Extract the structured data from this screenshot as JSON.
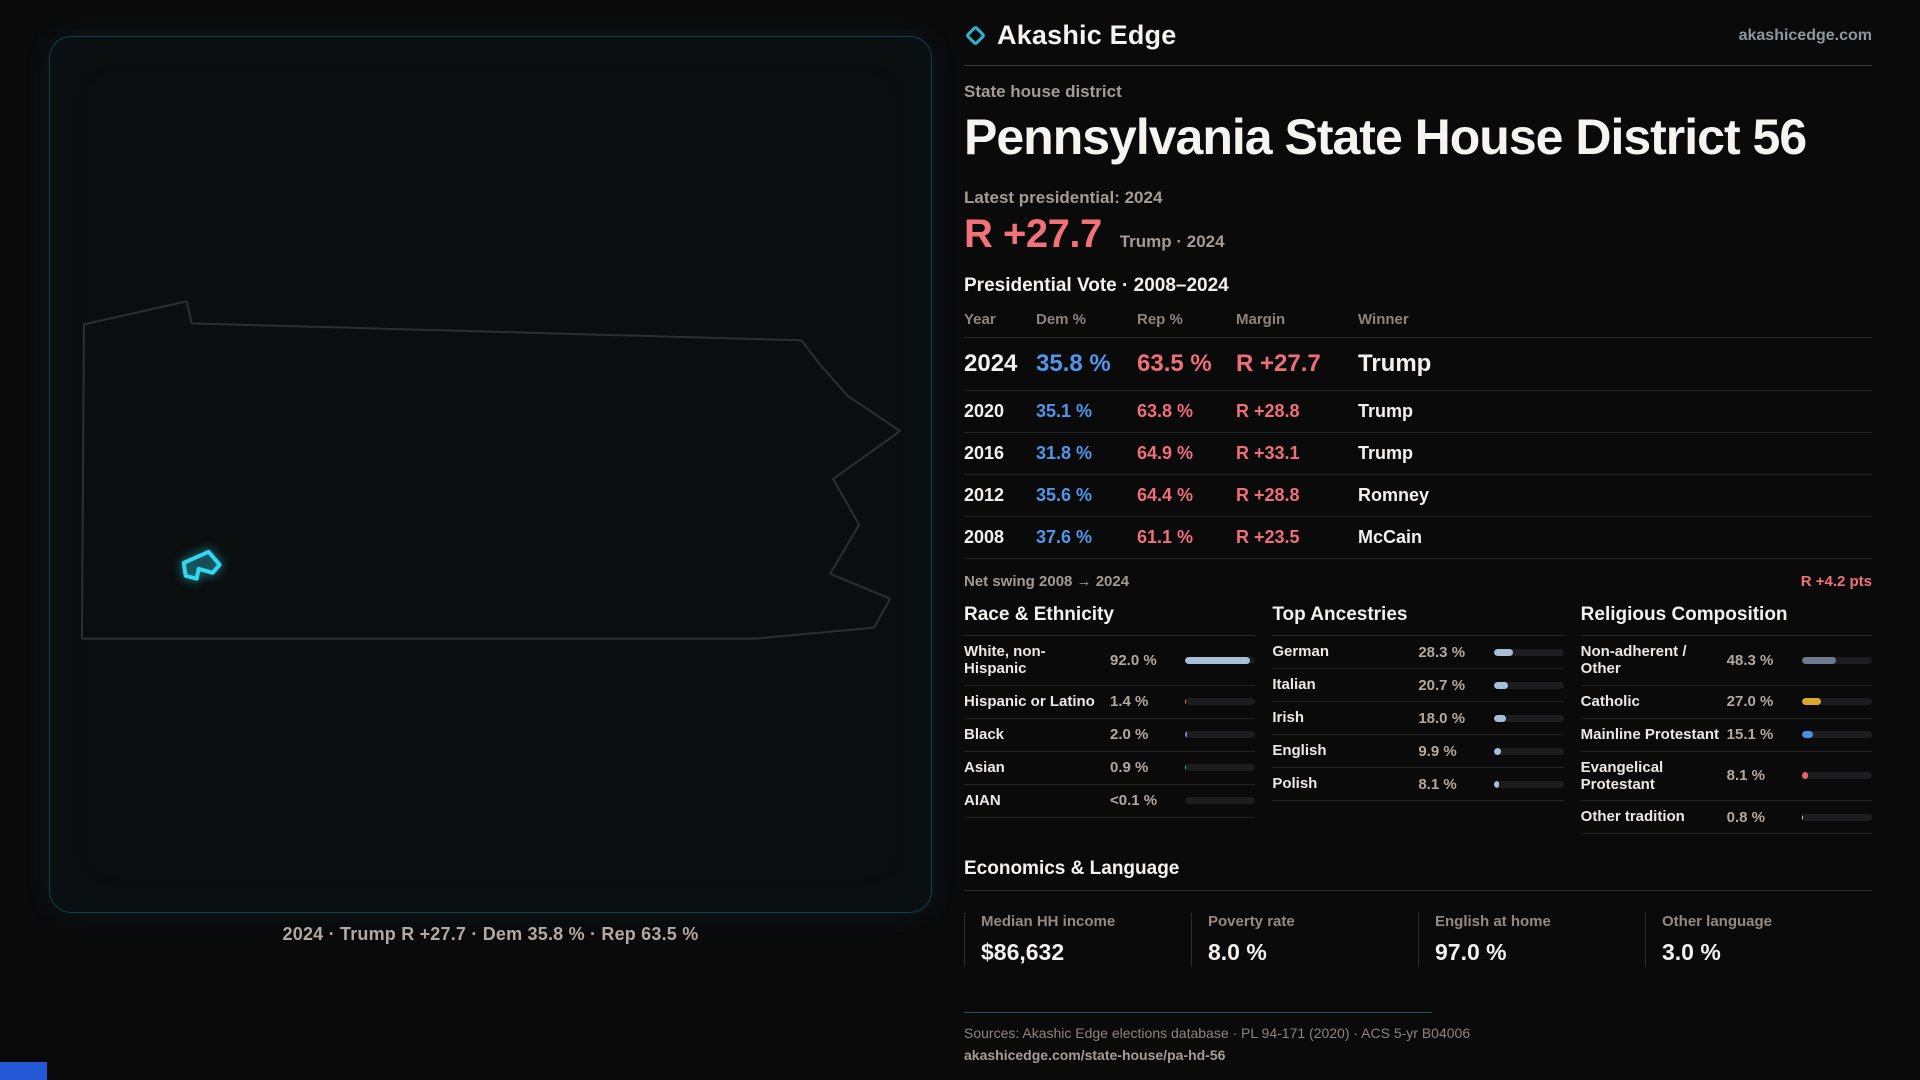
{
  "brand": {
    "name": "Akashic Edge",
    "site": "akashicedge.com",
    "accent": "#2ab4cf"
  },
  "header": {
    "kicker": "State house district",
    "title": "Pennsylvania State House District 56",
    "latest_label": "Latest presidential: 2024",
    "margin_big": "R +27.7",
    "margin_context": "Trump · 2024"
  },
  "map": {
    "caption": "2024 · Trump R +27.7 · Dem 35.8 % · Rep 63.5 %",
    "district_color": "#2fd9f0"
  },
  "vote_table": {
    "title": "Presidential Vote · 2008–2024",
    "columns": [
      "Year",
      "Dem %",
      "Rep %",
      "Margin",
      "Winner"
    ],
    "rows": [
      {
        "year": "2024",
        "dem": "35.8 %",
        "rep": "63.5 %",
        "margin": "R +27.7",
        "winner": "Trump"
      },
      {
        "year": "2020",
        "dem": "35.1 %",
        "rep": "63.8 %",
        "margin": "R +28.8",
        "winner": "Trump"
      },
      {
        "year": "2016",
        "dem": "31.8 %",
        "rep": "64.9 %",
        "margin": "R +33.1",
        "winner": "Trump"
      },
      {
        "year": "2012",
        "dem": "35.6 %",
        "rep": "64.4 %",
        "margin": "R +28.8",
        "winner": "Romney"
      },
      {
        "year": "2008",
        "dem": "37.6 %",
        "rep": "61.1 %",
        "margin": "R +23.5",
        "winner": "McCain"
      }
    ],
    "net_swing_label": "Net swing 2008 → 2024",
    "net_swing_value": "R +4.2 pts",
    "dem_color": "#4f97ea",
    "rep_color": "#ee6f79"
  },
  "demographics": {
    "race": {
      "title": "Race & Ethnicity",
      "rows": [
        {
          "label": "White, non-Hispanic",
          "value": "92.0 %",
          "pct": 92.0,
          "color": "#a9bed8"
        },
        {
          "label": "Hispanic or Latino",
          "value": "1.4 %",
          "pct": 1.4,
          "color": "#e2993b"
        },
        {
          "label": "Black",
          "value": "2.0 %",
          "pct": 2.0,
          "color": "#8f83d8"
        },
        {
          "label": "Asian",
          "value": "0.9 %",
          "pct": 0.9,
          "color": "#37d3a0"
        },
        {
          "label": "AIAN",
          "value": "<0.1 %",
          "pct": 0.05,
          "color": "#a9bed8"
        }
      ]
    },
    "ancestry": {
      "title": "Top Ancestries",
      "rows": [
        {
          "label": "German",
          "value": "28.3 %",
          "pct": 28.3,
          "color": "#a9bed8"
        },
        {
          "label": "Italian",
          "value": "20.7 %",
          "pct": 20.7,
          "color": "#a9bed8"
        },
        {
          "label": "Irish",
          "value": "18.0 %",
          "pct": 18.0,
          "color": "#a9bed8"
        },
        {
          "label": "English",
          "value": "9.9 %",
          "pct": 9.9,
          "color": "#a9bed8"
        },
        {
          "label": "Polish",
          "value": "8.1 %",
          "pct": 8.1,
          "color": "#a9bed8"
        }
      ]
    },
    "religion": {
      "title": "Religious Composition",
      "rows": [
        {
          "label": "Non-adherent / Other",
          "value": "48.3 %",
          "pct": 48.3,
          "color": "#6f7b8d"
        },
        {
          "label": "Catholic",
          "value": "27.0 %",
          "pct": 27.0,
          "color": "#dda62e"
        },
        {
          "label": "Mainline Protestant",
          "value": "15.1 %",
          "pct": 15.1,
          "color": "#4a90e0"
        },
        {
          "label": "Evangelical Protestant",
          "value": "8.1 %",
          "pct": 8.1,
          "color": "#e8636f"
        },
        {
          "label": "Other tradition",
          "value": "0.8 %",
          "pct": 0.8,
          "color": "#e8e8e8"
        }
      ]
    }
  },
  "economics": {
    "title": "Economics & Language",
    "stats": [
      {
        "label": "Median HH income",
        "value": "$86,632"
      },
      {
        "label": "Poverty rate",
        "value": "8.0 %"
      },
      {
        "label": "English at home",
        "value": "97.0 %"
      },
      {
        "label": "Other language",
        "value": "3.0 %"
      }
    ]
  },
  "footer": {
    "sources": "Sources: Akashic Edge elections database · PL 94-171 (2020) · ACS 5-yr B04006",
    "permalink": "akashicedge.com/state-house/pa-hd-56"
  }
}
